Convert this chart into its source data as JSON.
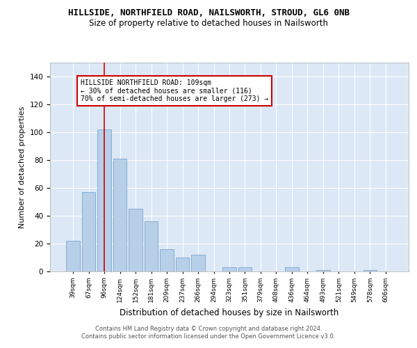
{
  "title": "HILLSIDE, NORTHFIELD ROAD, NAILSWORTH, STROUD, GL6 0NB",
  "subtitle": "Size of property relative to detached houses in Nailsworth",
  "xlabel": "Distribution of detached houses by size in Nailsworth",
  "ylabel": "Number of detached properties",
  "categories": [
    "39sqm",
    "67sqm",
    "96sqm",
    "124sqm",
    "152sqm",
    "181sqm",
    "209sqm",
    "237sqm",
    "266sqm",
    "294sqm",
    "323sqm",
    "351sqm",
    "379sqm",
    "408sqm",
    "436sqm",
    "464sqm",
    "493sqm",
    "521sqm",
    "549sqm",
    "578sqm",
    "606sqm"
  ],
  "values": [
    22,
    57,
    102,
    81,
    45,
    36,
    16,
    10,
    12,
    0,
    3,
    3,
    0,
    0,
    3,
    0,
    1,
    0,
    0,
    1,
    0
  ],
  "bar_color": "#b8cfe8",
  "bar_edge_color": "#6699cc",
  "ylim": [
    0,
    150
  ],
  "yticks": [
    0,
    20,
    40,
    60,
    80,
    100,
    120,
    140
  ],
  "red_line_x": 2.0,
  "annotation_text": "HILLSIDE NORTHFIELD ROAD: 109sqm\n← 30% of detached houses are smaller (116)\n70% of semi-detached houses are larger (273) →",
  "annotation_box_color": "#ffffff",
  "annotation_box_edge_color": "#cc0000",
  "red_line_color": "#cc0000",
  "background_color": "#dce8f5",
  "footer_line1": "Contains HM Land Registry data © Crown copyright and database right 2024.",
  "footer_line2": "Contains public sector information licensed under the Open Government Licence v3.0."
}
